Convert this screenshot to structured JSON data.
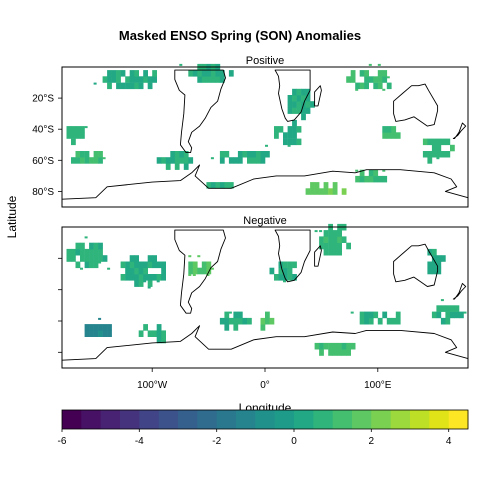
{
  "chart_data": {
    "type": "heatmap",
    "title": "Masked ENSO Spring (SON) Anomalies",
    "panels": [
      {
        "name": "Positive",
        "blobs": [
          {
            "lon": -120,
            "lat": -10,
            "rlon": 25,
            "rlat": 8,
            "value": 0.4
          },
          {
            "lon": -50,
            "lat": -5,
            "rlon": 20,
            "rlat": 8,
            "value": 0.6
          },
          {
            "lon": 90,
            "lat": -10,
            "rlon": 25,
            "rlat": 6,
            "value": 1.0
          },
          {
            "lon": -170,
            "lat": -45,
            "rlon": 10,
            "rlat": 6,
            "value": 0.8
          },
          {
            "lon": -160,
            "lat": -60,
            "rlon": 15,
            "rlat": 5,
            "value": 1.0
          },
          {
            "lon": -80,
            "lat": -62,
            "rlon": 20,
            "rlat": 5,
            "value": 0.6
          },
          {
            "lon": -20,
            "lat": -60,
            "rlon": 25,
            "rlat": 5,
            "value": 0.5
          },
          {
            "lon": 20,
            "lat": -45,
            "rlon": 15,
            "rlat": 8,
            "value": 0.5
          },
          {
            "lon": 110,
            "lat": -45,
            "rlon": 10,
            "rlat": 5,
            "value": 1.2
          },
          {
            "lon": 150,
            "lat": -55,
            "rlon": 15,
            "rlat": 8,
            "value": 0.8
          },
          {
            "lon": 50,
            "lat": -80,
            "rlon": 20,
            "rlat": 5,
            "value": 1.8
          },
          {
            "lon": 90,
            "lat": -73,
            "rlon": 15,
            "rlat": 4,
            "value": 1.2
          },
          {
            "lon": -40,
            "lat": -78,
            "rlon": 20,
            "rlat": 4,
            "value": 0.5
          },
          {
            "lon": 30,
            "lat": -25,
            "rlon": 12,
            "rlat": 10,
            "value": 0.4
          }
        ]
      },
      {
        "name": "Negative",
        "blobs": [
          {
            "lon": -160,
            "lat": -20,
            "rlon": 20,
            "rlat": 10,
            "value": 0.6
          },
          {
            "lon": -110,
            "lat": -30,
            "rlon": 20,
            "rlat": 10,
            "value": 0.3
          },
          {
            "lon": -60,
            "lat": -28,
            "rlon": 10,
            "rlat": 6,
            "value": 1.5
          },
          {
            "lon": 60,
            "lat": -10,
            "rlon": 15,
            "rlat": 10,
            "value": 0.8
          },
          {
            "lon": 15,
            "lat": -30,
            "rlon": 12,
            "rlat": 8,
            "value": 0.5
          },
          {
            "lon": -150,
            "lat": -68,
            "rlon": 15,
            "rlat": 5,
            "value": -1.2
          },
          {
            "lon": -100,
            "lat": -70,
            "rlon": 15,
            "rlat": 5,
            "value": 0.6
          },
          {
            "lon": -30,
            "lat": -62,
            "rlon": 15,
            "rlat": 5,
            "value": 0.5
          },
          {
            "lon": 0,
            "lat": -62,
            "rlon": 10,
            "rlat": 5,
            "value": 1.5
          },
          {
            "lon": 100,
            "lat": -60,
            "rlon": 20,
            "rlat": 6,
            "value": 0.6
          },
          {
            "lon": 160,
            "lat": -58,
            "rlon": 15,
            "rlat": 6,
            "value": 0.5
          },
          {
            "lon": 150,
            "lat": -25,
            "rlon": 10,
            "rlat": 10,
            "value": 0.5
          },
          {
            "lon": 60,
            "lat": -80,
            "rlon": 20,
            "rlat": 4,
            "value": 1.2
          }
        ]
      }
    ],
    "xlabel": "Longitude",
    "ylabel": "Latitude",
    "xlim": [
      -180,
      180
    ],
    "ylim": [
      -90,
      0
    ],
    "x_ticks": [
      {
        "value": -100,
        "label": "100°W"
      },
      {
        "value": 0,
        "label": "0°"
      },
      {
        "value": 100,
        "label": "100°E"
      }
    ],
    "y_ticks": [
      {
        "value": -20,
        "label": "20°S"
      },
      {
        "value": -40,
        "label": "40°S"
      },
      {
        "value": -60,
        "label": "60°S"
      },
      {
        "value": -80,
        "label": "80°S"
      }
    ],
    "colorbar": {
      "range": [
        -6,
        4.5
      ],
      "ticks": [
        -6,
        -4,
        -2,
        0,
        2,
        4
      ],
      "tick_labels": [
        "-6",
        "-4",
        "-2",
        "0",
        "2",
        "4"
      ],
      "colors": [
        "#440154",
        "#471265",
        "#482374",
        "#46337e",
        "#414487",
        "#3b528b",
        "#355f8d",
        "#2f6c8e",
        "#2a788e",
        "#25848e",
        "#21918c",
        "#1e9c89",
        "#22a884",
        "#2fb47c",
        "#44bf70",
        "#5ec962",
        "#7ad151",
        "#9bd93c",
        "#bddf26",
        "#dfe318",
        "#fde725"
      ]
    },
    "land": [
      {
        "name": "South America",
        "points": [
          [
            -80,
            -2
          ],
          [
            -80,
            -8
          ],
          [
            -76,
            -15
          ],
          [
            -71,
            -18
          ],
          [
            -72,
            -30
          ],
          [
            -74,
            -42
          ],
          [
            -75,
            -50
          ],
          [
            -70,
            -55
          ],
          [
            -66,
            -55
          ],
          [
            -65,
            -52
          ],
          [
            -68,
            -48
          ],
          [
            -65,
            -42
          ],
          [
            -58,
            -38
          ],
          [
            -53,
            -33
          ],
          [
            -48,
            -26
          ],
          [
            -42,
            -22
          ],
          [
            -39,
            -14
          ],
          [
            -35,
            -7
          ],
          [
            -37,
            -2
          ]
        ]
      },
      {
        "name": "Africa",
        "points": [
          [
            9,
            -2
          ],
          [
            12,
            -6
          ],
          [
            13,
            -12
          ],
          [
            12,
            -17
          ],
          [
            15,
            -27
          ],
          [
            18,
            -33
          ],
          [
            20,
            -35
          ],
          [
            26,
            -34
          ],
          [
            32,
            -29
          ],
          [
            35,
            -22
          ],
          [
            40,
            -15
          ],
          [
            40,
            -10
          ],
          [
            40,
            -2
          ]
        ]
      },
      {
        "name": "Australia",
        "points": [
          [
            114,
            -22
          ],
          [
            114,
            -30
          ],
          [
            116,
            -35
          ],
          [
            124,
            -34
          ],
          [
            132,
            -32
          ],
          [
            138,
            -35
          ],
          [
            144,
            -38
          ],
          [
            150,
            -37
          ],
          [
            153,
            -28
          ],
          [
            153,
            -25
          ],
          [
            145,
            -15
          ],
          [
            142,
            -11
          ],
          [
            136,
            -12
          ],
          [
            130,
            -12
          ],
          [
            122,
            -17
          ]
        ]
      },
      {
        "name": "Madagascar",
        "points": [
          [
            44,
            -16
          ],
          [
            44,
            -25
          ],
          [
            47,
            -25
          ],
          [
            50,
            -15
          ],
          [
            49,
            -12
          ]
        ]
      },
      {
        "name": "New Zealand",
        "points": [
          [
            167,
            -46
          ],
          [
            171,
            -44
          ],
          [
            174,
            -41
          ],
          [
            178,
            -38
          ],
          [
            175,
            -36
          ],
          [
            172,
            -42
          ],
          [
            168,
            -46
          ]
        ]
      },
      {
        "name": "Antarctica",
        "points": [
          [
            -180,
            -85
          ],
          [
            -150,
            -84
          ],
          [
            -140,
            -77
          ],
          [
            -100,
            -74
          ],
          [
            -75,
            -73
          ],
          [
            -65,
            -68
          ],
          [
            -58,
            -63
          ],
          [
            -62,
            -70
          ],
          [
            -50,
            -78
          ],
          [
            -30,
            -78
          ],
          [
            -10,
            -72
          ],
          [
            10,
            -70
          ],
          [
            35,
            -70
          ],
          [
            60,
            -67
          ],
          [
            80,
            -68
          ],
          [
            90,
            -66
          ],
          [
            120,
            -66
          ],
          [
            150,
            -68
          ],
          [
            165,
            -72
          ],
          [
            170,
            -77
          ],
          [
            160,
            -80
          ],
          [
            180,
            -84
          ],
          [
            180,
            -90
          ],
          [
            -180,
            -90
          ]
        ]
      }
    ]
  }
}
